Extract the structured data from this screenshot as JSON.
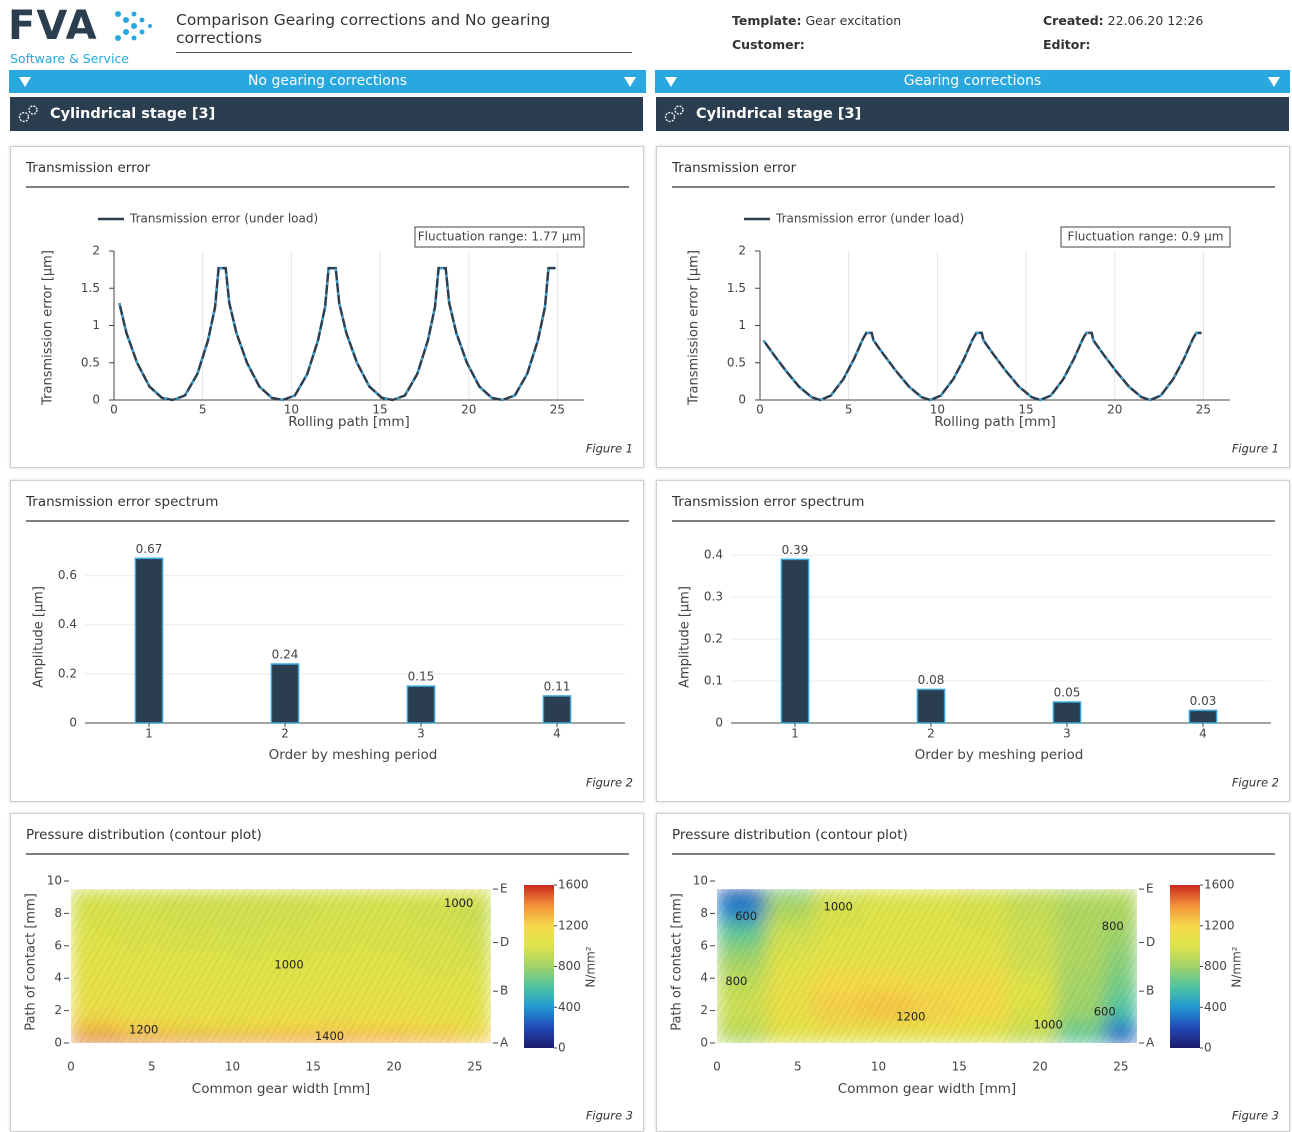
{
  "header": {
    "logo": "FVA",
    "logo_subtitle": "Software & Service",
    "title": "Comparison Gearing corrections and No gearing corrections",
    "template_label": "Template:",
    "template": "Gear excitation",
    "customer_label": "Customer:",
    "created_label": "Created:",
    "created": "22.06.20 12:26",
    "editor_label": "Editor:"
  },
  "columns": [
    {
      "section": "No gearing corrections",
      "stage": "Cylindrical stage [3]"
    },
    {
      "section": "Gearing corrections",
      "stage": "Cylindrical stage [3]"
    }
  ],
  "chart_data": [
    {
      "type": "line",
      "panel_title": "Transmission error",
      "figure_label": "Figure 1",
      "x_label": "Rolling path [mm]",
      "y_label": "Transmission error [µm]",
      "annotation": "Fluctuation range: 1.77 µm",
      "x": [
        0.3,
        0.7,
        1.3,
        2.0,
        2.7,
        3.3,
        4.0,
        4.7,
        5.3,
        5.7,
        5.9,
        6.3,
        6.5,
        6.9,
        7.5,
        8.2,
        8.9,
        9.5,
        10.2,
        10.9,
        11.5,
        11.9,
        12.1,
        12.5,
        12.7,
        13.1,
        13.7,
        14.4,
        15.1,
        15.7,
        16.4,
        17.1,
        17.7,
        18.1,
        18.3,
        18.7,
        18.9,
        19.3,
        19.9,
        20.6,
        21.3,
        21.9,
        22.6,
        23.3,
        23.9,
        24.3,
        24.5,
        24.9
      ],
      "series": [
        {
          "name": "Transmission error (under load)",
          "color": "#2b3e50",
          "marker_color": "#3aa6d8",
          "values": [
            1.3,
            0.9,
            0.5,
            0.18,
            0.03,
            0,
            0.06,
            0.35,
            0.8,
            1.25,
            1.77,
            1.77,
            1.3,
            0.9,
            0.5,
            0.18,
            0.03,
            0,
            0.06,
            0.35,
            0.8,
            1.25,
            1.77,
            1.77,
            1.3,
            0.9,
            0.5,
            0.18,
            0.03,
            0,
            0.06,
            0.35,
            0.8,
            1.25,
            1.77,
            1.77,
            1.3,
            0.9,
            0.5,
            0.18,
            0.03,
            0,
            0.06,
            0.35,
            0.8,
            1.25,
            1.77,
            1.77
          ]
        }
      ],
      "xlim": [
        0,
        26.5
      ],
      "ylim": [
        0,
        2
      ],
      "xticks": [
        0,
        5,
        10,
        15,
        20,
        25
      ],
      "yticks": [
        0,
        0.5,
        1,
        1.5,
        2
      ],
      "grid": true
    },
    {
      "type": "bar",
      "panel_title": "Transmission error spectrum",
      "figure_label": "Figure 2",
      "x_label": "Order by meshing period",
      "y_label": "Amplitude [µm]",
      "categories": [
        "1",
        "2",
        "3",
        "4"
      ],
      "values": [
        0.67,
        0.24,
        0.15,
        0.11
      ],
      "color": "#2b3e50",
      "edge_color": "#3aa6d8",
      "ylim": [
        0,
        0.7
      ],
      "yticks": [
        0,
        0.2,
        0.4,
        0.6
      ],
      "grid": true
    },
    {
      "type": "contour",
      "panel_title": "Pressure distribution (contour plot)",
      "figure_label": "Figure 3",
      "x_label": "Common gear width [mm]",
      "y_label": "Path of contact [mm]",
      "x_edges": [
        0,
        3,
        6,
        9,
        12,
        15,
        18,
        21,
        24,
        26
      ],
      "y_edges": [
        0,
        0.5,
        1.5,
        3,
        4.5,
        6,
        7.5,
        9,
        9.5
      ],
      "z": [
        [
          1550,
          1500,
          1450,
          1420,
          1420,
          1420,
          1400,
          1350,
          1250
        ],
        [
          1250,
          1200,
          1150,
          1150,
          1180,
          1200,
          1200,
          1150,
          1100
        ],
        [
          1100,
          1080,
          1060,
          1060,
          1070,
          1080,
          1080,
          1060,
          1040
        ],
        [
          1060,
          1050,
          1040,
          1030,
          1030,
          1040,
          1040,
          1030,
          1020
        ],
        [
          1040,
          1030,
          1010,
          1000,
          1000,
          1000,
          1000,
          990,
          980
        ],
        [
          1000,
          990,
          980,
          970,
          980,
          990,
          990,
          980,
          960
        ],
        [
          980,
          970,
          960,
          960,
          960,
          970,
          970,
          960,
          930
        ],
        [
          960,
          960,
          960,
          960,
          960,
          980,
          1000,
          1020,
          1050
        ]
      ],
      "xlim": [
        0,
        26
      ],
      "ylim": [
        0,
        10
      ],
      "xticks": [
        0,
        5,
        10,
        15,
        20,
        25
      ],
      "yticks": [
        0,
        2,
        4,
        6,
        8,
        10
      ],
      "y2lim": [
        0,
        10
      ],
      "y2ticks": [
        {
          "value": 0,
          "label": "A"
        },
        {
          "value": 3.2,
          "label": "B"
        },
        {
          "value": 6.2,
          "label": "D"
        },
        {
          "value": 9.5,
          "label": "E"
        }
      ],
      "colorscale": [
        "#1d1a6b",
        "#2449b8",
        "#1f98d0",
        "#4fc4a0",
        "#9fd36a",
        "#dde34a",
        "#f6d94a",
        "#f2913a",
        "#c9261f"
      ],
      "zlim": [
        0,
        1600
      ],
      "colorbar_ticks": [
        0,
        400,
        800,
        1200,
        1600
      ],
      "colorbar_title": "N/mm²",
      "annotations": [
        {
          "text": "1000",
          "x": 24,
          "y": 8.6
        },
        {
          "text": "1000",
          "x": 13.5,
          "y": 4.8
        },
        {
          "text": "1200",
          "x": 4.5,
          "y": 0.8
        },
        {
          "text": "1400",
          "x": 16,
          "y": 0.4
        }
      ]
    },
    {
      "type": "line",
      "panel_title": "Transmission error",
      "figure_label": "Figure 1",
      "x_label": "Rolling path [mm]",
      "y_label": "Transmission error [µm]",
      "annotation": "Fluctuation range: 0.9 µm",
      "x": [
        0.2,
        0.8,
        1.5,
        2.2,
        2.9,
        3.4,
        4.0,
        4.7,
        5.3,
        5.8,
        6.0,
        6.3,
        6.4,
        7.0,
        7.7,
        8.4,
        9.1,
        9.6,
        10.2,
        10.9,
        11.5,
        12.0,
        12.2,
        12.5,
        12.6,
        13.2,
        13.9,
        14.6,
        15.3,
        15.8,
        16.4,
        17.1,
        17.7,
        18.2,
        18.4,
        18.7,
        18.8,
        19.4,
        20.1,
        20.8,
        21.5,
        22.0,
        22.6,
        23.3,
        23.9,
        24.4,
        24.6,
        24.9
      ],
      "series": [
        {
          "name": "Transmission error (under load)",
          "color": "#2b3e50",
          "marker_color": "#3aa6d8",
          "values": [
            0.8,
            0.6,
            0.38,
            0.18,
            0.04,
            0,
            0.06,
            0.28,
            0.55,
            0.82,
            0.9,
            0.9,
            0.8,
            0.6,
            0.38,
            0.18,
            0.04,
            0,
            0.06,
            0.28,
            0.55,
            0.82,
            0.9,
            0.9,
            0.8,
            0.6,
            0.38,
            0.18,
            0.04,
            0,
            0.06,
            0.28,
            0.55,
            0.82,
            0.9,
            0.9,
            0.8,
            0.6,
            0.38,
            0.18,
            0.04,
            0,
            0.06,
            0.28,
            0.55,
            0.82,
            0.9,
            0.9
          ]
        }
      ],
      "xlim": [
        0,
        26.5
      ],
      "ylim": [
        0,
        2
      ],
      "xticks": [
        0,
        5,
        10,
        15,
        20,
        25
      ],
      "yticks": [
        0,
        0.5,
        1,
        1.5,
        2
      ],
      "grid": true
    },
    {
      "type": "bar",
      "panel_title": "Transmission error spectrum",
      "figure_label": "Figure 2",
      "x_label": "Order by meshing period",
      "y_label": "Amplitude [µm]",
      "categories": [
        "1",
        "2",
        "3",
        "4"
      ],
      "values": [
        0.39,
        0.08,
        0.05,
        0.03
      ],
      "color": "#2b3e50",
      "edge_color": "#3aa6d8",
      "ylim": [
        0,
        0.41
      ],
      "yticks": [
        0,
        0.1,
        0.2,
        0.3,
        0.4
      ],
      "grid": true
    },
    {
      "type": "contour",
      "panel_title": "Pressure distribution (contour plot)",
      "figure_label": "Figure 3",
      "x_label": "Common gear width [mm]",
      "y_label": "Path of contact [mm]",
      "x_edges": [
        0,
        3,
        6,
        9,
        12,
        15,
        18,
        21,
        24,
        26
      ],
      "y_edges": [
        0,
        0.5,
        1.5,
        3,
        4.5,
        6,
        7.5,
        9,
        9.5
      ],
      "z": [
        [
          850,
          1000,
          1050,
          1050,
          1050,
          1000,
          900,
          600,
          200
        ],
        [
          900,
          1050,
          1100,
          1100,
          1100,
          1050,
          950,
          700,
          350
        ],
        [
          950,
          1100,
          1230,
          1260,
          1220,
          1200,
          1000,
          800,
          600
        ],
        [
          900,
          1080,
          1200,
          1180,
          1150,
          1150,
          1000,
          820,
          700
        ],
        [
          800,
          1000,
          1050,
          1050,
          1050,
          1050,
          950,
          850,
          750
        ],
        [
          650,
          950,
          1000,
          1020,
          1020,
          1000,
          950,
          850,
          800
        ],
        [
          350,
          850,
          980,
          1000,
          1000,
          980,
          920,
          850,
          850
        ],
        [
          150,
          700,
          950,
          1000,
          1000,
          980,
          920,
          880,
          900
        ]
      ],
      "xlim": [
        0,
        26
      ],
      "ylim": [
        0,
        10
      ],
      "xticks": [
        0,
        5,
        10,
        15,
        20,
        25
      ],
      "yticks": [
        0,
        2,
        4,
        6,
        8,
        10
      ],
      "y2lim": [
        0,
        10
      ],
      "y2ticks": [
        {
          "value": 0,
          "label": "A"
        },
        {
          "value": 3.2,
          "label": "B"
        },
        {
          "value": 6.2,
          "label": "D"
        },
        {
          "value": 9.5,
          "label": "E"
        }
      ],
      "colorscale": [
        "#1d1a6b",
        "#2449b8",
        "#1f98d0",
        "#4fc4a0",
        "#9fd36a",
        "#dde34a",
        "#f6d94a",
        "#f2913a",
        "#c9261f"
      ],
      "zlim": [
        0,
        1600
      ],
      "colorbar_ticks": [
        0,
        400,
        800,
        1200,
        1600
      ],
      "colorbar_title": "N/mm²",
      "annotations": [
        {
          "text": "600",
          "x": 1.8,
          "y": 7.8
        },
        {
          "text": "1000",
          "x": 7.5,
          "y": 8.4
        },
        {
          "text": "800",
          "x": 24.5,
          "y": 7.2
        },
        {
          "text": "800",
          "x": 1.2,
          "y": 3.8
        },
        {
          "text": "1200",
          "x": 12,
          "y": 1.6
        },
        {
          "text": "1000",
          "x": 20.5,
          "y": 1.1
        },
        {
          "text": "600",
          "x": 24,
          "y": 1.9
        }
      ]
    }
  ]
}
